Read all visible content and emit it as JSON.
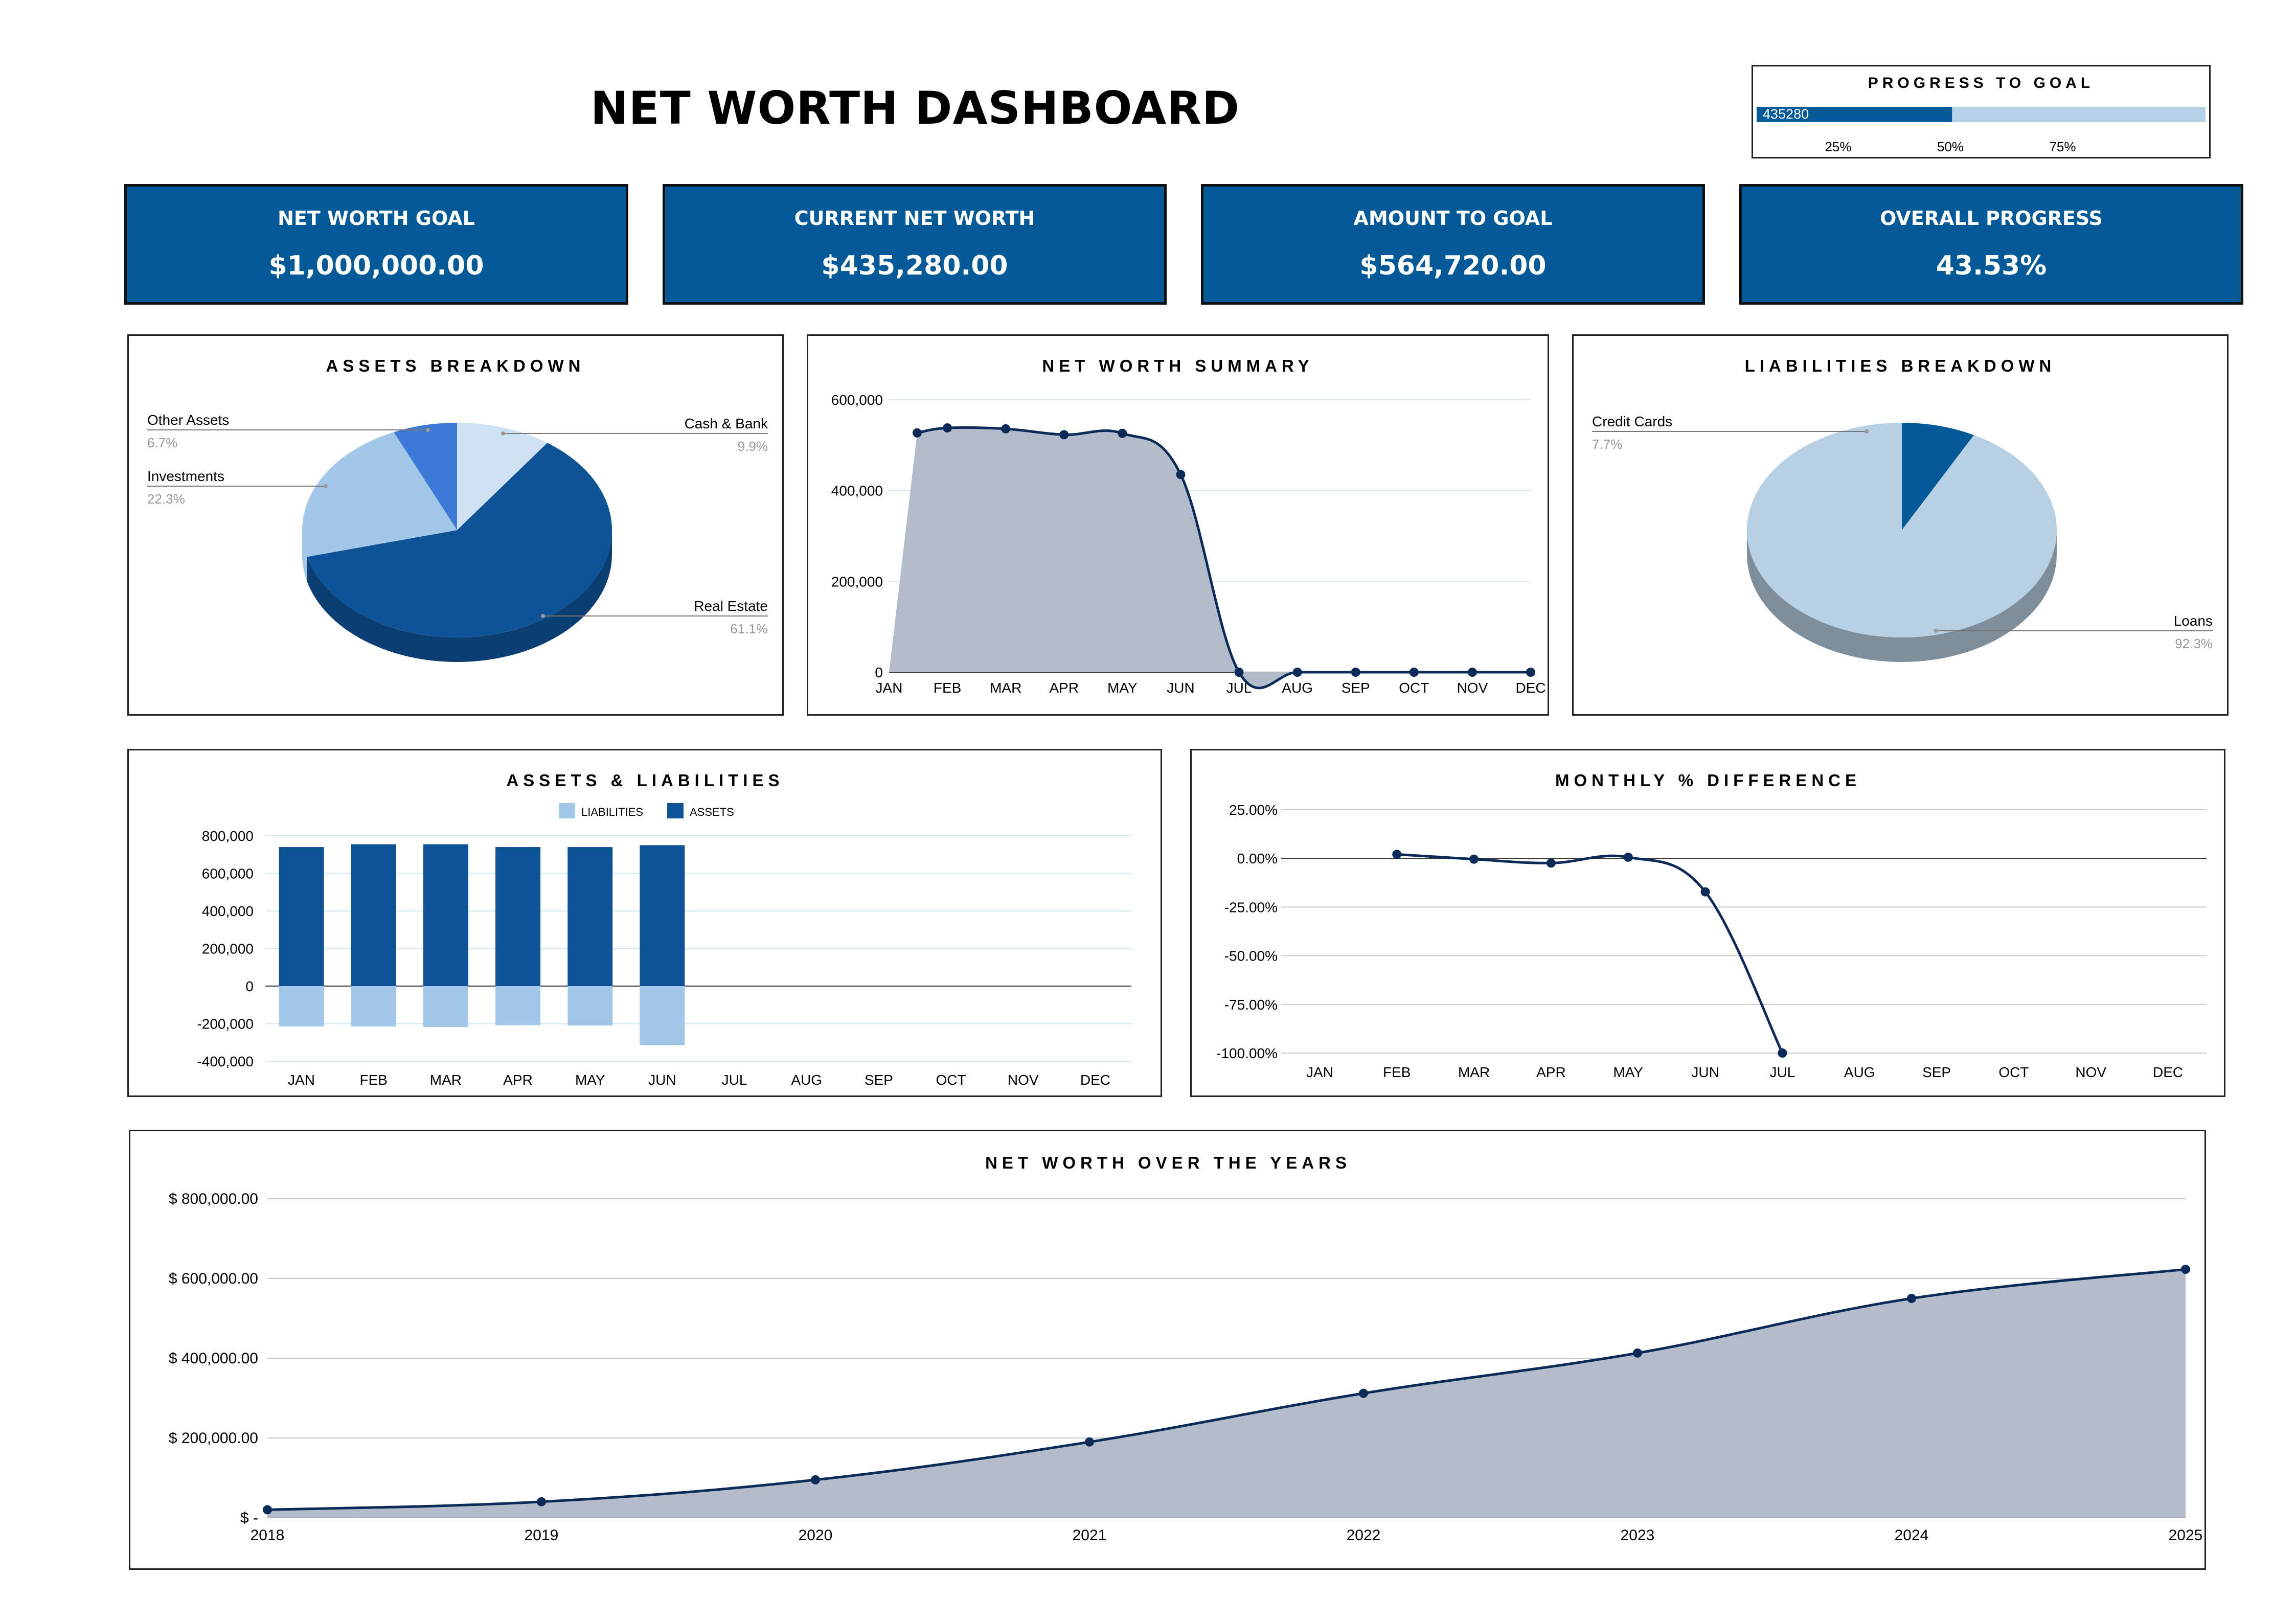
{
  "title": "NET WORTH DASHBOARD",
  "progress_to_goal": {
    "title": "PROGRESS TO GOAL",
    "value_label": "435280",
    "fraction": 0.4353,
    "ticks": [
      "25%",
      "50%",
      "75%"
    ],
    "colors": {
      "fill": "#035a96",
      "track": "#b7d2e6"
    }
  },
  "kpis": [
    {
      "label": "NET WORTH GOAL",
      "value": "$1,000,000.00"
    },
    {
      "label": "CURRENT NET WORTH",
      "value": "$435,280.00"
    },
    {
      "label": "AMOUNT TO GOAL",
      "value": "$564,720.00"
    },
    {
      "label": "OVERALL PROGRESS",
      "value": "43.53%"
    }
  ],
  "colors": {
    "kpi_bg": "#035a96",
    "dark_line": "#0b2a58",
    "area_fill": "#b3bccb",
    "assets_bar": "#0e5396",
    "liabilities_bar": "#a2c7e9",
    "grid": "#d3e6f4"
  },
  "chart_data": [
    {
      "id": "assets_breakdown",
      "type": "pie",
      "title": "ASSETS BREAKDOWN",
      "slices": [
        {
          "label": "Cash & Bank",
          "pct": "9.9%",
          "value": 9.9,
          "color": "#cfe2f4"
        },
        {
          "label": "Real Estate",
          "pct": "61.1%",
          "value": 61.1,
          "color": "#0e5396",
          "side": "#0b3e73"
        },
        {
          "label": "Investments",
          "pct": "22.3%",
          "value": 22.3,
          "color": "#a2c7e9"
        },
        {
          "label": "Other Assets",
          "pct": "6.7%",
          "value": 6.7,
          "color": "#3d7ad8"
        }
      ]
    },
    {
      "id": "net_worth_summary",
      "type": "area",
      "title": "NET WORTH SUMMARY",
      "x": [
        "JAN",
        "FEB",
        "MAR",
        "APR",
        "MAY",
        "JUN",
        "JUL",
        "AUG",
        "SEP",
        "OCT",
        "NOV",
        "DEC"
      ],
      "values": [
        527000,
        538000,
        536000,
        523000,
        526000,
        435280,
        0,
        0,
        0,
        0,
        0,
        0
      ],
      "ylim": [
        0,
        600000
      ],
      "yticks": [
        "0",
        "200,000",
        "400,000",
        "600,000"
      ],
      "grid": true
    },
    {
      "id": "liabilities_breakdown",
      "type": "pie",
      "title": "LIABILITIES BREAKDOWN",
      "slices": [
        {
          "label": "Credit Cards",
          "pct": "7.7%",
          "value": 7.7,
          "color": "#035a96"
        },
        {
          "label": "Loans",
          "pct": "92.3%",
          "value": 92.3,
          "color": "#b7d0e3",
          "side": "#7f8e9b"
        }
      ]
    },
    {
      "id": "assets_liabilities",
      "type": "bar",
      "title": "ASSETS & LIABILITIES",
      "legend": [
        "LIABILITIES",
        "ASSETS"
      ],
      "categories": [
        "JAN",
        "FEB",
        "MAR",
        "APR",
        "MAY",
        "JUN",
        "JUL",
        "AUG",
        "SEP",
        "OCT",
        "NOV",
        "DEC"
      ],
      "series": [
        {
          "name": "ASSETS",
          "values": [
            740000,
            755000,
            755000,
            740000,
            740000,
            750000,
            0,
            0,
            0,
            0,
            0,
            0
          ]
        },
        {
          "name": "LIABILITIES",
          "values": [
            -215000,
            -215000,
            -218000,
            -208000,
            -210000,
            -315000,
            0,
            0,
            0,
            0,
            0,
            0
          ]
        }
      ],
      "ylim": [
        -400000,
        800000
      ],
      "yticks": [
        "-400,000",
        "-200,000",
        "0",
        "200,000",
        "400,000",
        "600,000",
        "800,000"
      ]
    },
    {
      "id": "monthly_pct_difference",
      "type": "line",
      "title": "MONTHLY % DIFFERENCE",
      "x": [
        "JAN",
        "FEB",
        "MAR",
        "APR",
        "MAY",
        "JUN",
        "JUL",
        "AUG",
        "SEP",
        "OCT",
        "NOV",
        "DEC"
      ],
      "values": [
        null,
        2.1,
        -0.4,
        -2.4,
        0.6,
        -17.2,
        -100,
        null,
        null,
        null,
        null,
        null
      ],
      "ylim": [
        -100,
        25
      ],
      "yticks": [
        "-100.00%",
        "-75.00%",
        "-50.00%",
        "-25.00%",
        "0.00%",
        "25.00%"
      ]
    },
    {
      "id": "net_worth_over_years",
      "type": "area",
      "title": "NET WORTH OVER THE YEARS",
      "x": [
        "2018",
        "2019",
        "2020",
        "2021",
        "2022",
        "2023",
        "2024",
        "2025"
      ],
      "values": [
        20000,
        40000,
        95000,
        190000,
        312000,
        413000,
        550000,
        623000
      ],
      "ylim": [
        0,
        800000
      ],
      "yticks": [
        "$ -",
        "$ 200,000.00",
        "$ 400,000.00",
        "$ 600,000.00",
        "$ 800,000.00"
      ]
    }
  ]
}
